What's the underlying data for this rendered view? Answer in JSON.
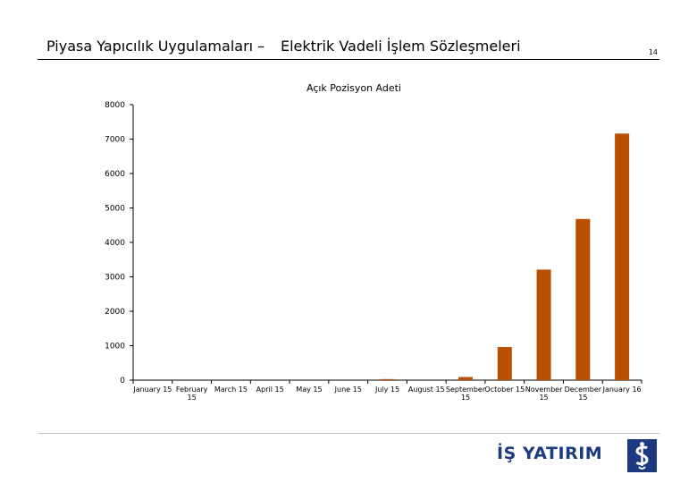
{
  "header": {
    "title_part1": "Piyasa Yapıcılık Uygulamaları –",
    "title_part2": "Elektrik Vadeli İşlem Sözleşmeleri",
    "page_number": "14"
  },
  "footer": {
    "logo_text": "İŞ YATIRIM",
    "logo_mark_text": "İŞ"
  },
  "chart_data": {
    "type": "bar",
    "title": "Açık Pozisyon Adeti",
    "xlabel": "",
    "ylabel": "",
    "ylim": [
      0,
      8000
    ],
    "yticks": [
      0,
      1000,
      2000,
      3000,
      4000,
      5000,
      6000,
      7000,
      8000
    ],
    "categories": [
      [
        "January 15"
      ],
      [
        "February",
        "15"
      ],
      [
        "March 15"
      ],
      [
        "April 15"
      ],
      [
        "May 15"
      ],
      [
        "June 15"
      ],
      [
        "July 15"
      ],
      [
        "August 15"
      ],
      [
        "September",
        "15"
      ],
      [
        "October 15"
      ],
      [
        "November",
        "15"
      ],
      [
        "December",
        "15"
      ],
      [
        "January 16"
      ]
    ],
    "values": [
      0,
      0,
      0,
      0,
      0,
      0,
      30,
      0,
      90,
      960,
      3210,
      4680,
      7160
    ],
    "bar_color": "#b85000",
    "grid": false,
    "legend": "none"
  }
}
